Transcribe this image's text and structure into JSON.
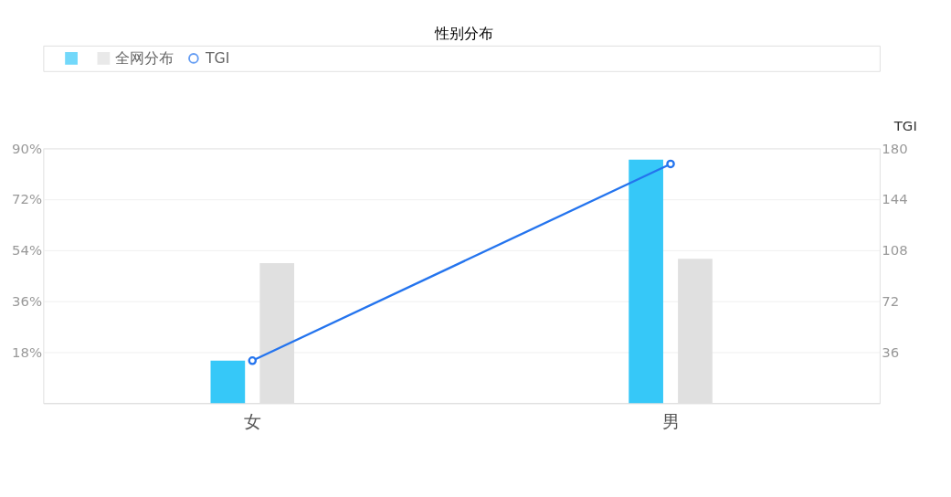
{
  "chart_data": {
    "type": "bar",
    "title": "性别分布",
    "categories": [
      "女",
      "男"
    ],
    "series": [
      {
        "type": "bar",
        "color": "#36c8f8",
        "values": [
          15,
          86
        ]
      },
      {
        "type": "bar",
        "name": "全网分布",
        "color": "#e0e0e0",
        "values": [
          49.5,
          51
        ]
      },
      {
        "type": "line",
        "name": "TGI",
        "color": "#2474ee",
        "axis": "y2",
        "marker": "circle",
        "line_style": "solid",
        "values": [
          30,
          169
        ]
      }
    ],
    "ylim": [
      0,
      90
    ],
    "yticks": [
      {
        "value": 18,
        "label": "18%"
      },
      {
        "value": 36,
        "label": "36%"
      },
      {
        "value": 54,
        "label": "54%"
      },
      {
        "value": 72,
        "label": "72%"
      },
      {
        "value": 90,
        "label": "90%"
      }
    ],
    "y2lim": [
      0,
      180
    ],
    "y2ticks": [
      36,
      72,
      108,
      144,
      180
    ],
    "y2label": "TGI",
    "grid": "y",
    "legend": "top left"
  }
}
